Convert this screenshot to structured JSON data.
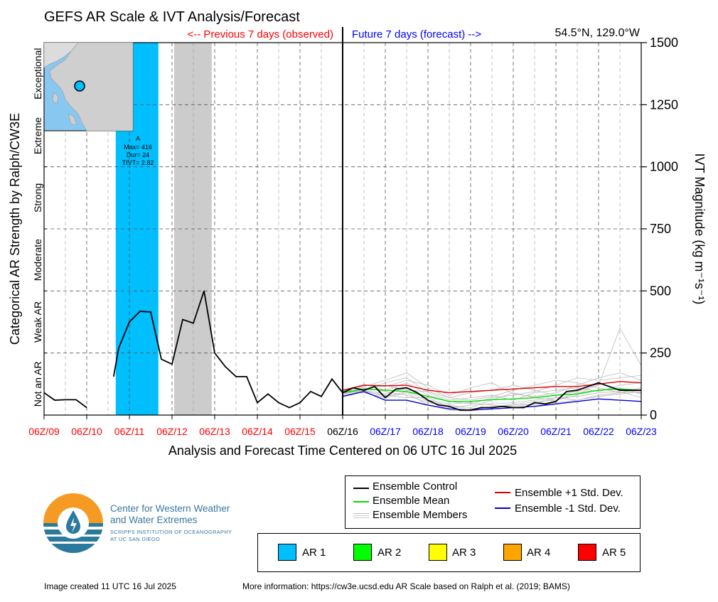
{
  "title": "GEFS AR Scale & IVT Analysis/Forecast",
  "location": "54.5°N, 129.0°W",
  "header_prev": "<-- Previous 7 days (observed)",
  "header_future": "Future 7 days (forecast) -->",
  "xlabel": "Analysis and Forecast Time Centered on 06 UTC 16 Jul 2025",
  "ylabel_left": "Categorical AR Strength by Ralph/CW3E",
  "ylabel_right": "IVT Magnitude (kg m⁻¹s⁻¹)",
  "colors": {
    "observed": "#ff0000",
    "forecast": "#0000ff",
    "control": "#000000",
    "mean": "#00dd00",
    "plus_sd": "#dd0000",
    "minus_sd": "#0000cc",
    "members": "#bbbbbb",
    "ar1": "#00bfff",
    "shade": "#cccccc"
  },
  "ar_event": {
    "label": "A",
    "max": "Max= 416",
    "dur": "Dur= 24",
    "tivt": "TIVT= 2.82"
  },
  "legend": {
    "control": "Ensemble Control",
    "mean": "Ensemble Mean",
    "members": "Ensemble Members",
    "plus_sd": "Ensemble +1 Std. Dev.",
    "minus_sd": "Ensemble -1 Std. Dev."
  },
  "ar_legend": [
    {
      "label": "AR 1",
      "color": "#00bfff"
    },
    {
      "label": "AR 2",
      "color": "#00ff00"
    },
    {
      "label": "AR 3",
      "color": "#ffff00"
    },
    {
      "label": "AR 4",
      "color": "#ffa500"
    },
    {
      "label": "AR 5",
      "color": "#ff0000"
    }
  ],
  "logo": {
    "line1": "Center for Western Weather",
    "line2": "and Water Extremes",
    "line3": "SCRIPPS INSTITUTION OF OCEANOGRAPHY",
    "line4": "AT UC SAN DIEGO"
  },
  "footer": {
    "created": "Image created 11 UTC 16 Jul 2025",
    "info": "More information: https://cw3e.ucsd.edu AR Scale based on Ralph et al. (2019; BAMS)"
  },
  "chart_data": {
    "type": "line",
    "x_unit": "days since 06Z/09 Jul 2025",
    "xlim": [
      0,
      14
    ],
    "ylim": [
      0,
      1500
    ],
    "x_ticks": [
      {
        "label": "06Z/09",
        "period": "observed"
      },
      {
        "label": "06Z/10",
        "period": "observed"
      },
      {
        "label": "06Z/11",
        "period": "observed"
      },
      {
        "label": "06Z/12",
        "period": "observed"
      },
      {
        "label": "06Z/13",
        "period": "observed"
      },
      {
        "label": "06Z/14",
        "period": "observed"
      },
      {
        "label": "06Z/15",
        "period": "observed"
      },
      {
        "label": "06Z/16",
        "period": "analysis"
      },
      {
        "label": "06Z/17",
        "period": "forecast"
      },
      {
        "label": "06Z/18",
        "period": "forecast"
      },
      {
        "label": "06Z/19",
        "period": "forecast"
      },
      {
        "label": "06Z/20",
        "period": "forecast"
      },
      {
        "label": "06Z/21",
        "period": "forecast"
      },
      {
        "label": "06Z/22",
        "period": "forecast"
      },
      {
        "label": "06Z/23",
        "period": "forecast"
      }
    ],
    "y_ticks": [
      0,
      250,
      500,
      750,
      1000,
      1250,
      1500
    ],
    "categories": [
      "Not an AR",
      "Weak AR",
      "Moderate",
      "Strong",
      "Extreme",
      "Exceptional"
    ],
    "category_bounds": [
      0,
      250,
      500,
      750,
      1000,
      1250,
      1500
    ],
    "ar_periods": [
      {
        "start": 1.68,
        "end": 2.68,
        "category": "AR 1"
      }
    ],
    "shaded_periods": [
      {
        "start": 3.05,
        "end": 3.93
      }
    ],
    "series": [
      {
        "name": "Ensemble Control",
        "segments": [
          {
            "x": [
              0,
              0.25,
              0.5,
              0.75,
              1.0
            ],
            "y": [
              90,
              60,
              62,
              62,
              30
            ]
          },
          {
            "x": [
              1.63,
              1.75,
              2.0,
              2.25,
              2.5,
              2.75,
              3.0,
              3.25,
              3.5,
              3.75,
              4.0,
              4.25,
              4.5,
              4.75,
              5.0,
              5.25,
              5.5,
              5.75,
              6.0,
              6.25,
              6.5,
              6.75,
              7.0
            ],
            "y": [
              155,
              270,
              375,
              418,
              415,
              225,
              205,
              385,
              370,
              500,
              250,
              195,
              155,
              155,
              50,
              85,
              50,
              30,
              50,
              95,
              75,
              145,
              90
            ]
          },
          {
            "x": [
              7.0,
              7.25,
              7.5,
              7.75,
              8.0,
              8.25,
              8.5,
              8.75,
              9.0,
              9.25,
              9.5,
              9.75,
              10.0,
              10.25,
              10.5,
              10.75,
              11.0,
              11.25,
              11.5,
              11.75,
              12.0,
              12.25,
              12.5,
              12.75,
              13.0,
              13.25,
              13.5,
              13.75,
              14.0
            ],
            "y": [
              90,
              110,
              100,
              115,
              70,
              105,
              110,
              90,
              60,
              40,
              35,
              20,
              20,
              30,
              30,
              35,
              30,
              30,
              50,
              45,
              55,
              95,
              100,
              115,
              130,
              115,
              100,
              100,
              100
            ]
          }
        ]
      },
      {
        "name": "Ensemble Mean",
        "x": [
          7.0,
          7.5,
          8.0,
          8.5,
          9.0,
          9.5,
          10.0,
          10.5,
          11.0,
          11.5,
          12.0,
          12.5,
          13.0,
          13.5,
          14.0
        ],
        "y": [
          90,
          105,
          100,
          95,
          75,
          55,
          55,
          62,
          65,
          70,
          80,
          85,
          100,
          105,
          100
        ]
      },
      {
        "name": "Ensemble +1 Std. Dev.",
        "x": [
          7.0,
          7.5,
          8.0,
          8.5,
          9.0,
          9.5,
          10.0,
          10.5,
          11.0,
          11.5,
          12.0,
          12.5,
          13.0,
          13.5,
          14.0
        ],
        "y": [
          100,
          120,
          118,
          120,
          100,
          90,
          95,
          100,
          105,
          110,
          115,
          115,
          125,
          135,
          130
        ]
      },
      {
        "name": "Ensemble -1 Std. Dev.",
        "x": [
          7.0,
          7.5,
          8.0,
          8.5,
          9.0,
          9.5,
          10.0,
          10.5,
          11.0,
          11.5,
          12.0,
          12.5,
          13.0,
          13.5,
          14.0
        ],
        "y": [
          75,
          95,
          60,
          60,
          40,
          25,
          20,
          25,
          30,
          35,
          45,
          55,
          65,
          60,
          55
        ]
      },
      {
        "name": "Ensemble Members",
        "x": [
          7.0,
          7.5,
          8.0,
          8.5,
          9.0,
          9.5,
          10.0,
          10.5,
          11.0,
          11.5,
          12.0,
          12.5,
          13.0,
          13.5,
          14.0
        ],
        "members": [
          [
            85,
            100,
            130,
            150,
            90,
            60,
            70,
            80,
            60,
            90,
            100,
            110,
            95,
            120,
            130
          ],
          [
            95,
            110,
            95,
            80,
            50,
            40,
            30,
            60,
            90,
            70,
            60,
            80,
            130,
            100,
            90
          ],
          [
            100,
            120,
            115,
            140,
            120,
            80,
            110,
            130,
            85,
            75,
            90,
            120,
            150,
            170,
            140
          ],
          [
            80,
            95,
            80,
            70,
            70,
            30,
            40,
            45,
            50,
            60,
            70,
            60,
            80,
            90,
            110
          ],
          [
            90,
            115,
            140,
            170,
            110,
            70,
            60,
            75,
            100,
            120,
            140,
            130,
            110,
            90,
            100
          ],
          [
            95,
            90,
            70,
            90,
            40,
            20,
            15,
            35,
            40,
            55,
            60,
            90,
            100,
            110,
            85
          ],
          [
            85,
            105,
            120,
            100,
            95,
            70,
            90,
            100,
            120,
            100,
            80,
            95,
            120,
            350,
            200
          ],
          [
            90,
            100,
            85,
            110,
            60,
            45,
            50,
            40,
            35,
            45,
            70,
            75,
            90,
            95,
            70
          ],
          [
            95,
            125,
            100,
            130,
            80,
            55,
            45,
            70,
            80,
            95,
            120,
            150,
            140,
            150,
            160
          ],
          [
            88,
            98,
            75,
            95,
            55,
            35,
            25,
            30,
            45,
            40,
            50,
            60,
            75,
            85,
            95
          ]
        ]
      }
    ]
  }
}
